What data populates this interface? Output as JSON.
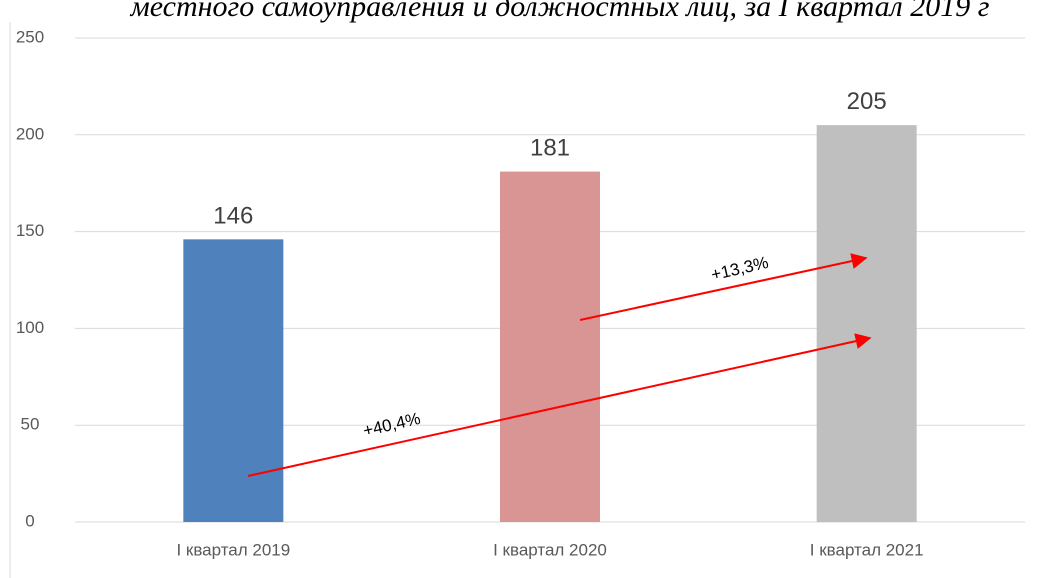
{
  "chart_data": {
    "type": "bar",
    "title": "местного самоуправления и должностных лиц, за I квартал 2019 г",
    "categories": [
      "I квартал 2019",
      "I квартал 2020",
      "I квартал 2021"
    ],
    "values": [
      146,
      181,
      205
    ],
    "colors": [
      "#4f81bd",
      "#d99594",
      "#bfbfbf"
    ],
    "ylim": [
      0,
      250
    ],
    "yticks": [
      0,
      50,
      100,
      150,
      200,
      250
    ],
    "grid": true,
    "annotations": [
      "+40,4%",
      "+13,3%"
    ]
  }
}
